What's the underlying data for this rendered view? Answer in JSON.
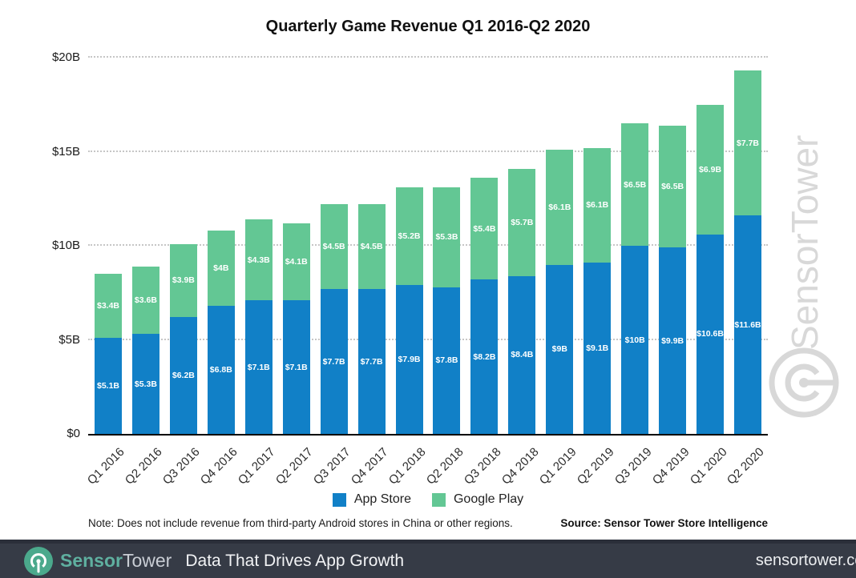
{
  "title": "Quarterly Game Revenue Q1 2016-Q2 2020",
  "chart_data": {
    "type": "bar",
    "stacked": true,
    "title": "Quarterly Game Revenue Q1 2016-Q2 2020",
    "categories": [
      "Q1 2016",
      "Q2 2016",
      "Q3 2016",
      "Q4 2016",
      "Q1 2017",
      "Q2 2017",
      "Q3 2017",
      "Q4 2017",
      "Q1 2018",
      "Q2 2018",
      "Q3 2018",
      "Q4 2018",
      "Q1 2019",
      "Q2 2019",
      "Q3 2019",
      "Q4 2019",
      "Q1 2020",
      "Q2 2020"
    ],
    "series": [
      {
        "name": "App Store",
        "color": "#1180c7",
        "values": [
          5.1,
          5.3,
          6.2,
          6.8,
          7.1,
          7.1,
          7.7,
          7.7,
          7.9,
          7.8,
          8.2,
          8.4,
          9,
          9.1,
          10,
          9.9,
          10.6,
          11.6
        ],
        "labels": [
          "$5.1B",
          "$5.3B",
          "$6.2B",
          "$6.8B",
          "$7.1B",
          "$7.1B",
          "$7.7B",
          "$7.7B",
          "$7.9B",
          "$7.8B",
          "$8.2B",
          "$8.4B",
          "$9B",
          "$9.1B",
          "$10B",
          "$9.9B",
          "$10.6B",
          "$11.6B"
        ]
      },
      {
        "name": "Google Play",
        "color": "#63c794",
        "values": [
          3.4,
          3.6,
          3.9,
          4,
          4.3,
          4.1,
          4.5,
          4.5,
          5.2,
          5.3,
          5.4,
          5.7,
          6.1,
          6.1,
          6.5,
          6.5,
          6.9,
          7.7
        ],
        "labels": [
          "$3.4B",
          "$3.6B",
          "$3.9B",
          "$4B",
          "$4.3B",
          "$4.1B",
          "$4.5B",
          "$4.5B",
          "$5.2B",
          "$5.3B",
          "$5.4B",
          "$5.7B",
          "$6.1B",
          "$6.1B",
          "$6.5B",
          "$6.5B",
          "$6.9B",
          "$7.7B"
        ]
      }
    ],
    "units": "billions USD",
    "yticks": [
      {
        "value": 0,
        "label": "$0"
      },
      {
        "value": 5,
        "label": "$5B"
      },
      {
        "value": 10,
        "label": "$10B"
      },
      {
        "value": 15,
        "label": "$15B"
      },
      {
        "value": 20,
        "label": "$20B"
      }
    ],
    "ylim": [
      0,
      20
    ],
    "grid": "dotted-horizontal",
    "legend_position": "bottom",
    "value_labels": "inside-segments-white"
  },
  "note": {
    "text": "Note: Does not include revenue from third-party Android stores in China or other regions.",
    "source": "Source: Sensor Tower Store Intelligence"
  },
  "watermark": {
    "text": "SensorTower",
    "color": "#d8d8d8"
  },
  "footer": {
    "brand_sensor": "Sensor",
    "brand_tower": "Tower",
    "tagline": "Data That Drives App Growth",
    "domain": "sensortower.com",
    "background": "#363b46",
    "brand_color": "#4ba98c"
  }
}
